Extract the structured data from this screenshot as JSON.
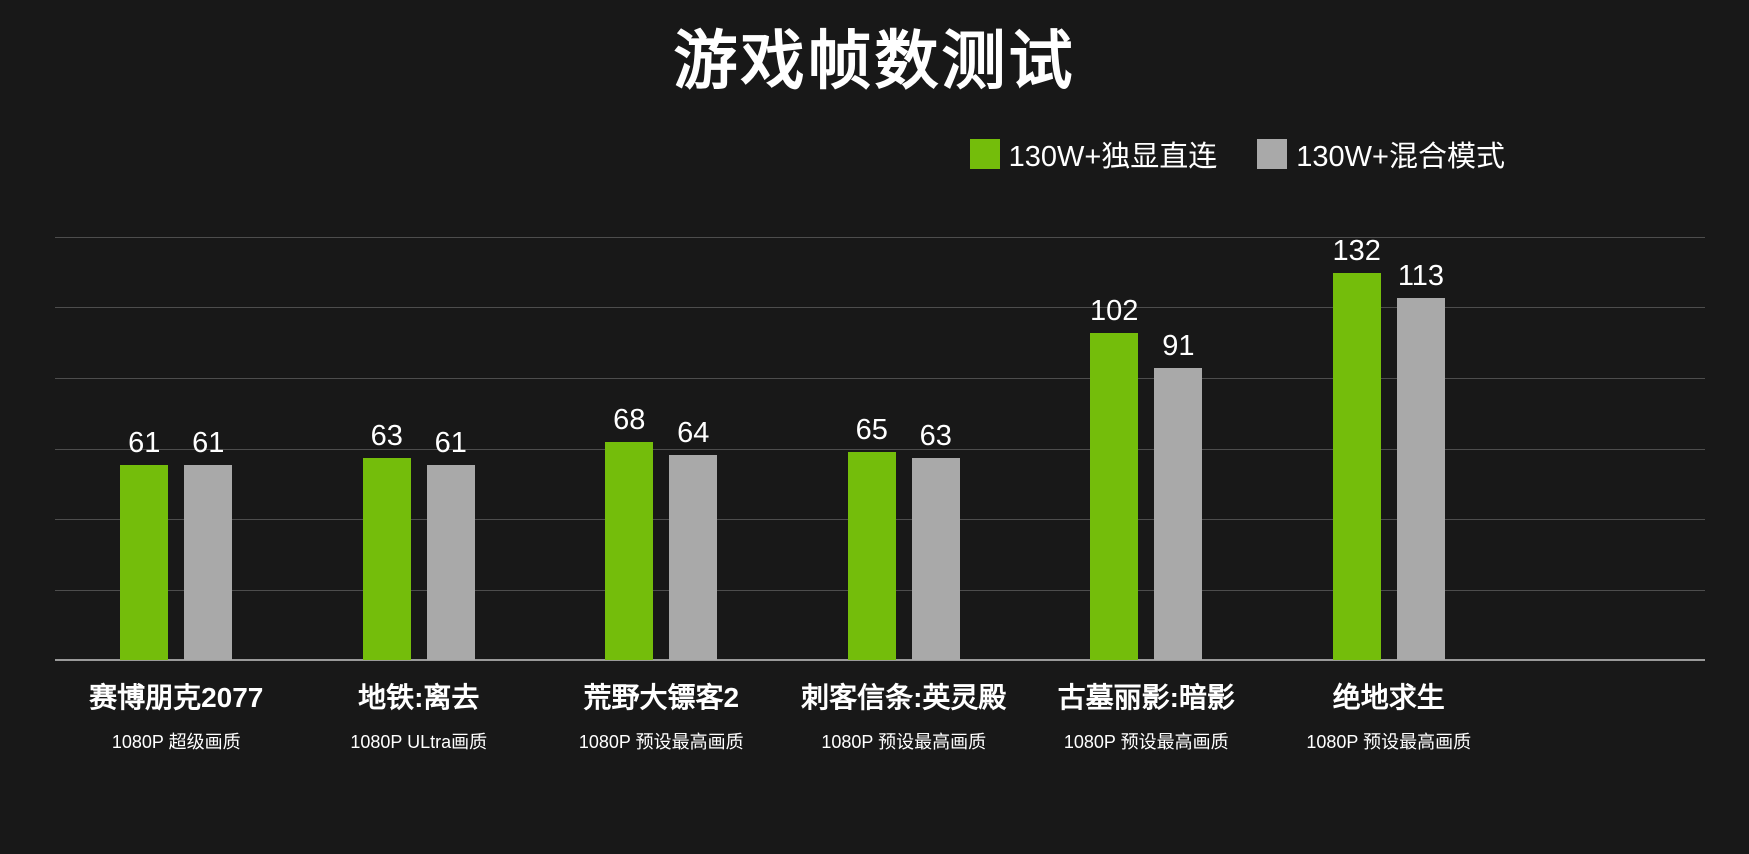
{
  "title": "游戏帧数测试",
  "legend": {
    "items": [
      {
        "key": "direct",
        "label": "130W+独显直连",
        "color": "#74bd0b"
      },
      {
        "key": "hybrid",
        "label": "130W+混合模式",
        "color": "#a9a9a9"
      }
    ]
  },
  "chart_data": {
    "type": "bar",
    "title": "游戏帧数测试",
    "categories": [
      "赛博朋克2077",
      "地铁:离去",
      "荒野大镖客2",
      "刺客信条:英灵殿",
      "古墓丽影:暗影",
      "绝地求生"
    ],
    "category_subtitles": [
      "1080P 超级画质",
      "1080P ULtra画质",
      "1080P 预设最高画质",
      "1080P 预设最高画质",
      "1080P 预设最高画质",
      "1080P 预设最高画质"
    ],
    "series": [
      {
        "key": "direct",
        "name": "130W+独显直连",
        "color": "#74bd0b",
        "values": [
          61,
          63,
          68,
          65,
          102,
          132
        ]
      },
      {
        "key": "hybrid",
        "name": "130W+混合模式",
        "color": "#a9a9a9",
        "values": [
          61,
          61,
          64,
          63,
          91,
          113
        ]
      }
    ],
    "xlabel": "",
    "ylabel": "",
    "ylim": [
      0,
      132
    ],
    "grid": true,
    "grid_intervals": 6,
    "legend_position": "top-right",
    "y_axis_labels_shown": false
  },
  "colors": {
    "background": "#181818",
    "text": "#ffffff",
    "gridline": "#4d4d4d",
    "baseline": "#9a9a9a"
  }
}
